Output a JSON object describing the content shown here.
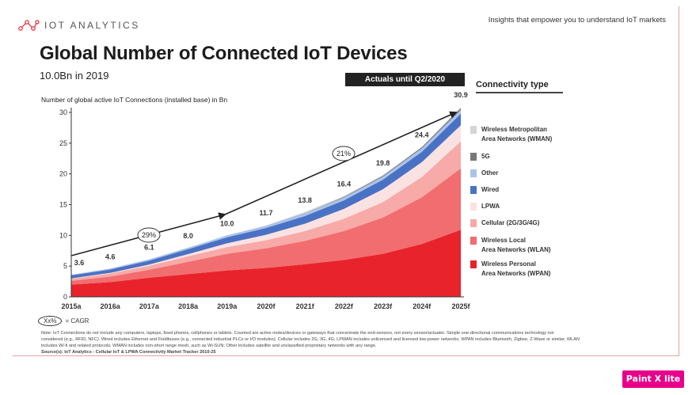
{
  "header": {
    "logo_text": "IOT ANALYTICS",
    "tagline": "Insights that empower you to understand IoT markets"
  },
  "title": "Global Number of Connected IoT Devices",
  "subtitle": "10.0Bn in 2019",
  "actuals_label": "Actuals until Q2/2020",
  "connectivity_title": "Connectivity type",
  "cagr_key": {
    "oval": "Xx%",
    "label": "= CAGR"
  },
  "notes": {
    "line1": "Note: IoT Connections do not include any computers, laptops, fixed phones, cellphones or tablets. Counted are active nodes/devices or gateways that concentrate the end-sensors, not every sensor/actuator. Simple one-directional communications technology not",
    "line2": "considered (e.g., RFID, NFC). Wired includes Ethernet and Fieldbuses (e.g., connected industrial PLCs or I/O modules); Cellular includes 2G, 3G, 4G; LPWAN includes unlicensed and licensed low-power networks; WPAN includes Bluetooth, Zigbee, Z-Wave or similar; WLAN",
    "line3": "includes Wi-fi and related protocols; WMAN includes non-short range mesh, such as Wi-SUN; Other includes satellite and unclassified proprietary networks with any range.",
    "source": "Source(s): IoT Analytics - Cellular IoT & LPWA Connectivity Market Tracker 2010-25"
  },
  "watermark": "Paint X lite",
  "colors": {
    "wpan": "#e8232b",
    "wlan": "#f26d6f",
    "cellular": "#f7aaa8",
    "lpwa": "#fbe2e2",
    "wired": "#4a72c4",
    "other": "#a9c3ec",
    "fiveg": "#777777",
    "wman": "#d5d5d5"
  },
  "chart_data": {
    "type": "area",
    "stacked": true,
    "ylabel": "Number of global active IoT Connections (installed base) in Bn",
    "ylim": [
      0,
      30
    ],
    "yticks": [
      0,
      5,
      10,
      15,
      20,
      25,
      30
    ],
    "categories": [
      "2015a",
      "2016a",
      "2017a",
      "2018a",
      "2019a",
      "2020f",
      "2021f",
      "2022f",
      "2023f",
      "2024f",
      "2025f"
    ],
    "totals": [
      3.6,
      4.6,
      6.1,
      8.0,
      10.0,
      11.7,
      13.8,
      16.4,
      19.8,
      24.4,
      30.9
    ],
    "series": [
      {
        "name": "Wireless Personal\nArea Networks (WPAN)",
        "color": "#e8232b",
        "values": [
          2.0,
          2.4,
          3.1,
          3.7,
          4.3,
          4.7,
          5.3,
          6.0,
          7.0,
          8.6,
          10.9
        ]
      },
      {
        "name": "Wireless Local\nArea Networks (WLAN)",
        "color": "#f26d6f",
        "values": [
          0.6,
          0.9,
          1.3,
          2.0,
          2.7,
          3.2,
          3.8,
          4.7,
          5.9,
          7.6,
          10.0
        ]
      },
      {
        "name": "Cellular (2G/3G/4G)",
        "color": "#f7aaa8",
        "values": [
          0.35,
          0.5,
          0.65,
          0.9,
          1.1,
          1.3,
          1.6,
          2.0,
          2.5,
          3.3,
          4.4
        ]
      },
      {
        "name": "LPWA",
        "color": "#fbe2e2",
        "values": [
          0.05,
          0.1,
          0.2,
          0.35,
          0.6,
          0.9,
          1.2,
          1.6,
          2.1,
          2.4,
          2.6
        ]
      },
      {
        "name": "Wired",
        "color": "#4a72c4",
        "values": [
          0.5,
          0.55,
          0.65,
          0.8,
          1.0,
          1.1,
          1.25,
          1.4,
          1.55,
          1.7,
          1.9
        ]
      },
      {
        "name": "Other",
        "color": "#a9c3ec",
        "values": [
          0.1,
          0.15,
          0.2,
          0.25,
          0.3,
          0.35,
          0.4,
          0.45,
          0.5,
          0.55,
          0.6
        ]
      },
      {
        "name": "5G",
        "color": "#777777",
        "values": [
          0,
          0,
          0,
          0,
          0,
          0.02,
          0.05,
          0.1,
          0.15,
          0.2,
          0.3
        ]
      },
      {
        "name": "Wireless Metropolitan\nArea Networks (WMAN)",
        "color": "#d5d5d5",
        "values": [
          0,
          0,
          0,
          0,
          0,
          0.03,
          0.2,
          0.15,
          0.1,
          0.05,
          0.2
        ]
      }
    ],
    "legend_order": [
      "Wireless Metropolitan\nArea Networks (WMAN)",
      "5G",
      "Other",
      "Wired",
      "LPWA",
      "Cellular (2G/3G/4G)",
      "Wireless Local\nArea Networks (WLAN)",
      "Wireless Personal\nArea Networks (WPAN)"
    ],
    "cagr_annotations": [
      {
        "label": "29%",
        "at": "2017a"
      },
      {
        "label": "21%",
        "at": "2022f"
      }
    ]
  }
}
